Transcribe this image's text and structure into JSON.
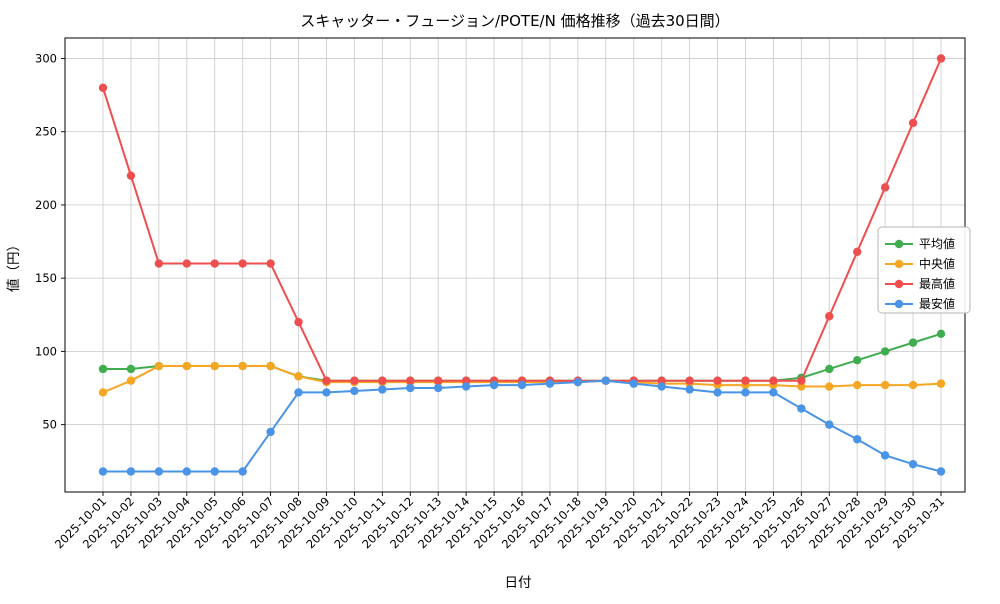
{
  "chart_data": {
    "type": "line",
    "title": "スキャッター・フュージョン/POTE/N 価格推移（過去30日間）",
    "xlabel": "日付",
    "ylabel": "値（円）",
    "x": [
      "2025-10-01",
      "2025-10-02",
      "2025-10-03",
      "2025-10-04",
      "2025-10-05",
      "2025-10-06",
      "2025-10-07",
      "2025-10-08",
      "2025-10-09",
      "2025-10-10",
      "2025-10-11",
      "2025-10-12",
      "2025-10-13",
      "2025-10-14",
      "2025-10-15",
      "2025-10-16",
      "2025-10-17",
      "2025-10-18",
      "2025-10-19",
      "2025-10-20",
      "2025-10-21",
      "2025-10-22",
      "2025-10-23",
      "2025-10-24",
      "2025-10-25",
      "2025-10-26",
      "2025-10-27",
      "2025-10-28",
      "2025-10-29",
      "2025-10-30",
      "2025-10-31"
    ],
    "series": [
      {
        "key": "average",
        "name": "平均値",
        "color": "#3fad4f",
        "values": [
          88,
          88,
          90,
          90,
          90,
          90,
          90,
          83,
          80,
          80,
          80,
          80,
          80,
          80,
          80,
          80,
          80,
          80,
          80,
          80,
          80,
          80,
          80,
          80,
          80,
          82,
          88,
          94,
          100,
          106,
          112
        ]
      },
      {
        "key": "median",
        "name": "中央値",
        "color": "#f5a623",
        "values": [
          72,
          80,
          90,
          90,
          90,
          90,
          90,
          83,
          79,
          79,
          79,
          79,
          79,
          79,
          79,
          79,
          79,
          79,
          80,
          79,
          78,
          78,
          77,
          77,
          77,
          76,
          76,
          77,
          77,
          77,
          78
        ]
      },
      {
        "key": "max",
        "name": "最高値",
        "color": "#ef4e4e",
        "values": [
          280,
          220,
          160,
          160,
          160,
          160,
          160,
          120,
          80,
          80,
          80,
          80,
          80,
          80,
          80,
          80,
          80,
          80,
          80,
          80,
          80,
          80,
          80,
          80,
          80,
          80,
          124,
          168,
          212,
          256,
          300
        ]
      },
      {
        "key": "min",
        "name": "最安値",
        "color": "#4a94e8",
        "values": [
          18,
          18,
          18,
          18,
          18,
          18,
          45,
          72,
          72,
          73,
          74,
          75,
          75,
          76,
          77,
          77,
          78,
          79,
          80,
          78,
          76,
          74,
          72,
          72,
          72,
          61,
          50,
          40,
          29,
          23,
          18
        ]
      }
    ],
    "yticks": [
      50,
      100,
      150,
      200,
      250,
      300
    ],
    "ylim": [
      4,
      314
    ],
    "grid": true,
    "grid_color": "#cfcfcf",
    "legend_position": "center right",
    "x_tick_rotation": 45
  }
}
